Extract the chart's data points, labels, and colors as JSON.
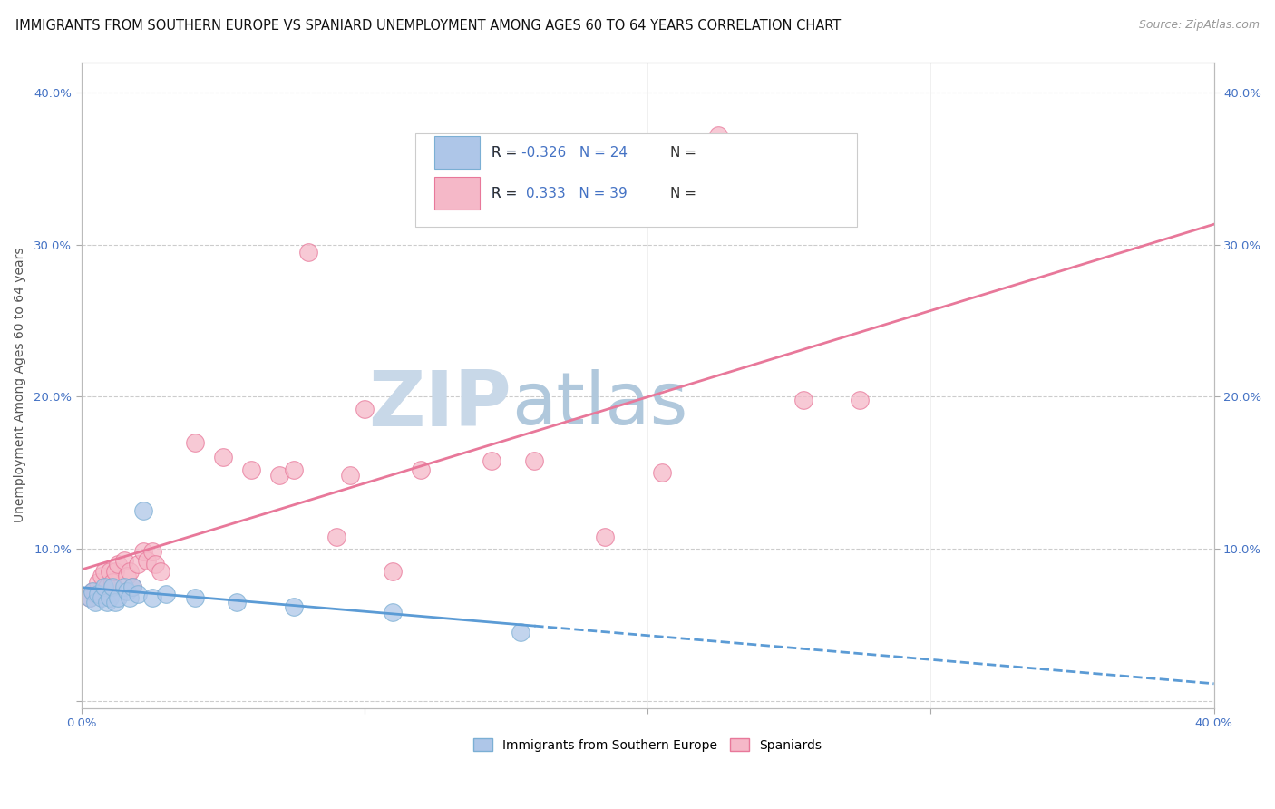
{
  "title": "IMMIGRANTS FROM SOUTHERN EUROPE VS SPANIARD UNEMPLOYMENT AMONG AGES 60 TO 64 YEARS CORRELATION CHART",
  "source": "Source: ZipAtlas.com",
  "ylabel": "Unemployment Among Ages 60 to 64 years",
  "xlim": [
    0.0,
    0.4
  ],
  "ylim": [
    -0.005,
    0.42
  ],
  "blue_R": -0.326,
  "blue_N": 24,
  "pink_R": 0.333,
  "pink_N": 39,
  "blue_face_color": "#aec6e8",
  "blue_edge_color": "#7bafd4",
  "pink_face_color": "#f5b8c8",
  "pink_edge_color": "#e8789a",
  "blue_line_color": "#5b9bd5",
  "pink_line_color": "#e8789a",
  "watermark_zip": "ZIP",
  "watermark_atlas": "atlas",
  "watermark_color": "#c8d8e8",
  "watermark_atlas_color": "#b0c8dc",
  "legend_label_blue": "Immigrants from Southern Europe",
  "legend_label_pink": "Spaniards",
  "blue_scatter_x": [
    0.003,
    0.004,
    0.005,
    0.006,
    0.007,
    0.008,
    0.009,
    0.01,
    0.011,
    0.012,
    0.013,
    0.015,
    0.016,
    0.017,
    0.018,
    0.02,
    0.022,
    0.025,
    0.03,
    0.04,
    0.055,
    0.075,
    0.11,
    0.155
  ],
  "blue_scatter_y": [
    0.068,
    0.072,
    0.065,
    0.07,
    0.068,
    0.075,
    0.065,
    0.068,
    0.075,
    0.065,
    0.068,
    0.075,
    0.072,
    0.068,
    0.075,
    0.07,
    0.125,
    0.068,
    0.07,
    0.068,
    0.065,
    0.062,
    0.058,
    0.045
  ],
  "pink_scatter_x": [
    0.003,
    0.004,
    0.005,
    0.006,
    0.007,
    0.008,
    0.009,
    0.01,
    0.011,
    0.012,
    0.013,
    0.015,
    0.016,
    0.017,
    0.018,
    0.02,
    0.022,
    0.023,
    0.025,
    0.026,
    0.028,
    0.04,
    0.05,
    0.06,
    0.07,
    0.075,
    0.08,
    0.09,
    0.095,
    0.1,
    0.11,
    0.12,
    0.145,
    0.16,
    0.185,
    0.205,
    0.225,
    0.255,
    0.275
  ],
  "pink_scatter_y": [
    0.068,
    0.072,
    0.07,
    0.078,
    0.082,
    0.085,
    0.075,
    0.085,
    0.078,
    0.085,
    0.09,
    0.092,
    0.082,
    0.085,
    0.075,
    0.09,
    0.098,
    0.092,
    0.098,
    0.09,
    0.085,
    0.17,
    0.16,
    0.152,
    0.148,
    0.152,
    0.295,
    0.108,
    0.148,
    0.192,
    0.085,
    0.152,
    0.158,
    0.158,
    0.108,
    0.15,
    0.372,
    0.198,
    0.198
  ],
  "grid_color": "#cccccc",
  "bg_color": "#ffffff",
  "title_fontsize": 10.5,
  "tick_fontsize": 9.5,
  "tick_color": "#4472c4",
  "legend_fontsize": 10,
  "stat_fontsize": 11,
  "stat_blue_color": "#4472c4",
  "stat_black_color": "#333333",
  "right_tick_color": "#4472c4"
}
